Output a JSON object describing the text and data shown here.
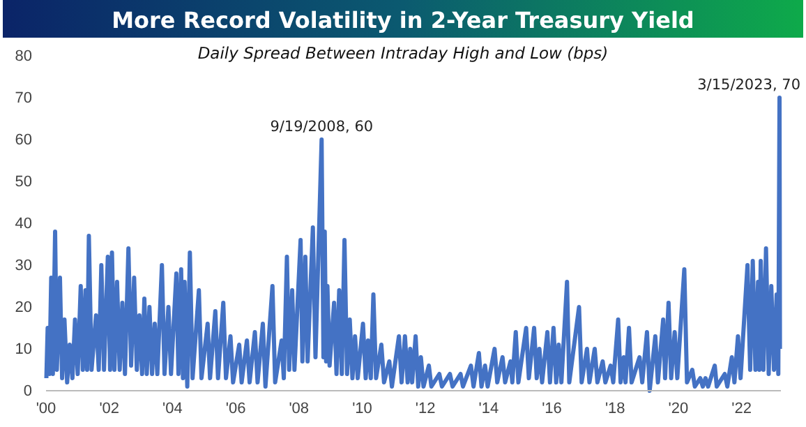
{
  "chart_data": {
    "type": "line",
    "title": "More Record Volatility in 2-Year Treasury Yield",
    "subtitle": "Daily Spread Between Intraday High and Low (bps)",
    "x": [
      "2000-01-05",
      "2000-01-20",
      "2000-02-10",
      "2000-03-01",
      "2000-03-20",
      "2000-04-15",
      "2000-05-05",
      "2000-06-10",
      "2000-07-05",
      "2000-08-01",
      "2000-09-01",
      "2000-10-01",
      "2000-11-01",
      "2000-12-01",
      "2001-01-01",
      "2001-02-05",
      "2001-03-01",
      "2001-04-01",
      "2001-04-20",
      "2001-05-10",
      "2001-06-10",
      "2001-08-01",
      "2001-09-01",
      "2001-10-01",
      "2001-11-01",
      "2001-12-15",
      "2002-01-10",
      "2002-02-01",
      "2002-03-01",
      "2002-04-01",
      "2002-05-01",
      "2002-06-01",
      "2002-07-01",
      "2002-08-10",
      "2002-09-10",
      "2002-10-15",
      "2002-11-15",
      "2002-12-15",
      "2003-01-15",
      "2003-02-10",
      "2003-03-10",
      "2003-04-10",
      "2003-05-10",
      "2003-06-10",
      "2003-07-10",
      "2003-09-01",
      "2003-10-01",
      "2003-11-15",
      "2003-12-15",
      "2004-02-15",
      "2004-03-10",
      "2004-04-10",
      "2004-05-01",
      "2004-05-20",
      "2004-06-20",
      "2004-07-20",
      "2004-08-20",
      "2004-11-01",
      "2004-12-01",
      "2005-02-10",
      "2005-03-10",
      "2005-05-10",
      "2005-06-10",
      "2005-08-10",
      "2005-09-10",
      "2005-11-01",
      "2005-12-01",
      "2006-02-10",
      "2006-03-10",
      "2006-05-10",
      "2006-06-10",
      "2006-08-10",
      "2006-09-10",
      "2006-11-10",
      "2006-12-10",
      "2007-03-01",
      "2007-04-01",
      "2007-06-15",
      "2007-07-10",
      "2007-08-15",
      "2007-09-10",
      "2007-10-15",
      "2007-11-10",
      "2008-01-20",
      "2008-02-10",
      "2008-03-15",
      "2008-04-10",
      "2008-06-10",
      "2008-07-10",
      "2008-09-19",
      "2008-10-10",
      "2008-10-25",
      "2008-11-10",
      "2008-11-25",
      "2008-12-20",
      "2009-02-10",
      "2009-03-10",
      "2009-04-10",
      "2009-05-10",
      "2009-06-10",
      "2009-07-10",
      "2009-08-10",
      "2009-09-10",
      "2009-10-10",
      "2009-11-10",
      "2010-01-10",
      "2010-02-10",
      "2010-03-10",
      "2010-04-10",
      "2010-05-10",
      "2010-06-10",
      "2010-08-10",
      "2010-09-10",
      "2010-11-10",
      "2010-12-10",
      "2011-03-01",
      "2011-04-01",
      "2011-05-10",
      "2011-06-10",
      "2011-07-10",
      "2011-08-01",
      "2011-09-10",
      "2011-10-10",
      "2011-11-10",
      "2011-12-10",
      "2012-02-10",
      "2012-03-10",
      "2012-06-10",
      "2012-07-10",
      "2012-10-10",
      "2012-11-10",
      "2013-02-10",
      "2013-03-10",
      "2013-06-10",
      "2013-07-10",
      "2013-09-10",
      "2013-10-10",
      "2013-11-20",
      "2013-12-20",
      "2014-03-10",
      "2014-04-10",
      "2014-06-10",
      "2014-07-10",
      "2014-09-10",
      "2014-10-01",
      "2014-11-10",
      "2014-12-10",
      "2015-03-10",
      "2015-04-10",
      "2015-06-10",
      "2015-07-10",
      "2015-08-10",
      "2015-09-10",
      "2015-11-10",
      "2015-12-10",
      "2016-01-20",
      "2016-02-20",
      "2016-03-20",
      "2016-04-20",
      "2016-06-24",
      "2016-07-20",
      "2016-11-10",
      "2016-12-10",
      "2017-02-10",
      "2017-03-10",
      "2017-05-10",
      "2017-06-10",
      "2017-08-10",
      "2017-09-10",
      "2017-11-10",
      "2017-12-10",
      "2018-02-05",
      "2018-03-05",
      "2018-04-10",
      "2018-05-01",
      "2018-06-10",
      "2018-07-10",
      "2018-10-10",
      "2018-11-10",
      "2019-01-04",
      "2019-02-04",
      "2019-04-10",
      "2019-05-10",
      "2019-07-10",
      "2019-08-01",
      "2019-09-10",
      "2019-10-10",
      "2019-11-20",
      "2019-12-20",
      "2020-03-10",
      "2020-04-10",
      "2020-06-10",
      "2020-07-10",
      "2020-09-10",
      "2020-10-10",
      "2020-11-10",
      "2020-12-10",
      "2021-02-25",
      "2021-03-20",
      "2021-06-20",
      "2021-07-20",
      "2021-09-10",
      "2021-10-10",
      "2021-11-20",
      "2021-12-20",
      "2022-03-10",
      "2022-04-10",
      "2022-05-10",
      "2022-06-10",
      "2022-07-10",
      "2022-07-25",
      "2022-08-10",
      "2022-09-10",
      "2022-10-10",
      "2022-11-10",
      "2022-12-10",
      "2023-01-10",
      "2023-02-10",
      "2023-03-01",
      "2023-03-15",
      "2023-03-20"
    ],
    "series": [
      {
        "color": "#4472c4",
        "values": [
          3,
          15,
          4,
          27,
          4,
          38,
          5,
          27,
          3,
          17,
          2,
          11,
          3,
          17,
          4,
          25,
          5,
          24,
          5,
          37,
          5,
          18,
          5,
          30,
          5,
          32,
          5,
          33,
          5,
          26,
          5,
          21,
          4,
          34,
          6,
          27,
          5,
          18,
          4,
          22,
          4,
          20,
          4,
          16,
          4,
          30,
          4,
          20,
          4,
          28,
          4,
          29,
          3,
          26,
          1,
          33,
          3,
          24,
          3,
          16,
          3,
          19,
          3,
          21,
          3,
          13,
          2,
          11,
          2,
          12,
          2,
          14,
          2,
          16,
          1,
          25,
          2,
          12,
          3,
          32,
          5,
          24,
          5,
          36,
          7,
          32,
          7,
          39,
          8,
          60,
          8,
          38,
          7,
          25,
          6,
          21,
          4,
          24,
          4,
          36,
          4,
          17,
          3,
          13,
          3,
          16,
          3,
          12,
          3,
          23,
          3,
          11,
          2,
          7,
          1,
          13,
          2,
          13,
          2,
          10,
          2,
          13,
          1,
          8,
          1,
          6,
          1,
          4,
          1,
          4,
          1,
          4,
          1,
          6,
          1,
          9,
          1,
          6,
          1,
          10,
          2,
          8,
          2,
          7,
          2,
          14,
          2,
          15,
          3,
          15,
          3,
          10,
          2,
          14,
          2,
          15,
          2,
          11,
          2,
          26,
          2,
          20,
          2,
          10,
          2,
          10,
          2,
          7,
          2,
          6,
          2,
          17,
          2,
          8,
          2,
          15,
          2,
          8,
          2,
          14,
          0,
          13,
          2,
          17,
          3,
          21,
          3,
          14,
          3,
          29,
          2,
          5,
          1,
          3,
          1,
          3,
          1,
          6,
          1,
          4,
          1,
          8,
          2,
          13,
          3,
          30,
          5,
          31,
          5,
          26,
          5,
          31,
          5,
          34,
          4,
          25,
          5,
          23,
          4,
          70,
          10
        ]
      }
    ],
    "xlim": [
      "2000-01-01",
      "2023-03-31"
    ],
    "xticks": [
      {
        "value": "2000-01-01",
        "label": "'00"
      },
      {
        "value": "2002-01-01",
        "label": "'02"
      },
      {
        "value": "2004-01-01",
        "label": "'04"
      },
      {
        "value": "2006-01-01",
        "label": "'06"
      },
      {
        "value": "2008-01-01",
        "label": "'08"
      },
      {
        "value": "2010-01-01",
        "label": "'10"
      },
      {
        "value": "2012-01-01",
        "label": "'12"
      },
      {
        "value": "2014-01-01",
        "label": "'14"
      },
      {
        "value": "2016-01-01",
        "label": "'16"
      },
      {
        "value": "2018-01-01",
        "label": "'18"
      },
      {
        "value": "2020-01-01",
        "label": "'20"
      },
      {
        "value": "2022-01-01",
        "label": "'22"
      }
    ],
    "ylim": [
      0,
      80
    ],
    "yticks": [
      0,
      10,
      20,
      30,
      40,
      50,
      60,
      70,
      80
    ],
    "grid": false,
    "marker": "none",
    "line_style": "solid",
    "annotations": [
      {
        "text": "9/19/2008, 60",
        "x": "2008-09-19",
        "y": 60
      },
      {
        "text": "3/15/2023, 70",
        "x": "2023-03-15",
        "y": 70
      }
    ]
  }
}
